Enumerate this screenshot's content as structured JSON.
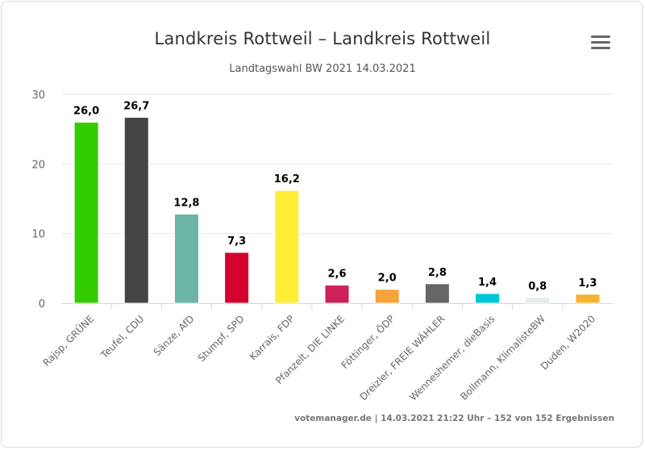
{
  "chart_data": {
    "type": "bar",
    "title": "Landkreis Rottweil – Landkreis Rottweil",
    "subtitle": "Landtagswahl BW 2021 14.03.2021",
    "categories": [
      "Rajsp, GRÜNE",
      "Teufel, CDU",
      "Sänze, AfD",
      "Stumpf, SPD",
      "Karrais, FDP",
      "Pfanzelt, DIE LINKE",
      "Föttinger, ÖDP",
      "Dreizler, FREIE WÄHLER",
      "Wenneshemer, dieBasis",
      "Bollmann, KlimalisteBW",
      "Duden, W2020"
    ],
    "values": [
      26.0,
      26.7,
      12.8,
      7.3,
      16.2,
      2.6,
      2.0,
      2.8,
      1.4,
      0.8,
      1.3
    ],
    "value_labels": [
      "26,0",
      "26,7",
      "12,8",
      "7,3",
      "16,2",
      "2,6",
      "2,0",
      "2,8",
      "1,4",
      "0,8",
      "1,3"
    ],
    "colors": [
      "#33cc00",
      "#444444",
      "#6ab5a6",
      "#d4002e",
      "#ffee33",
      "#cc2255",
      "#f5a33a",
      "#666666",
      "#00c6d7",
      "#e3ede8",
      "#f6b232"
    ],
    "ylim": [
      0,
      30
    ],
    "yticks": [
      0,
      10,
      20,
      30
    ],
    "grid": true,
    "legend": "none"
  },
  "credits": "votemanager.de | 14.03.2021 21:22 Uhr – 152 von 152 Ergebnissen",
  "menu_icon": "hamburger-menu-icon"
}
